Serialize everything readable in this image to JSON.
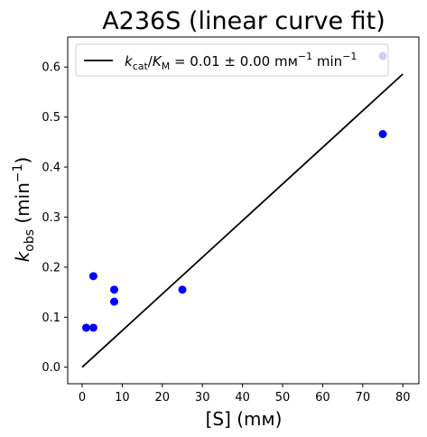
{
  "chart_data": {
    "type": "scatter",
    "title": "A236S (linear curve fit)",
    "xlabel": "[S] (mм)",
    "ylabel": "k_obs (min⁻¹)",
    "xlim": [
      -3.6,
      84
    ],
    "ylim": [
      -0.033,
      0.66
    ],
    "xticks": [
      0,
      10,
      20,
      30,
      40,
      50,
      60,
      70,
      80
    ],
    "yticks": [
      0.0,
      0.1,
      0.2,
      0.3,
      0.4,
      0.5,
      0.6
    ],
    "grid": false,
    "legend_position": "top",
    "point_color": "#0000ff",
    "line_color": "#000000",
    "series": [
      {
        "type": "scatter",
        "x": [
          1,
          2.8,
          2.8,
          8,
          8,
          25,
          75,
          75
        ],
        "y": [
          0.079,
          0.079,
          0.182,
          0.155,
          0.131,
          0.155,
          0.466,
          0.622
        ]
      },
      {
        "type": "line",
        "name": "k_cat/K_M = 0.01 ± 0.00 mм⁻¹ min⁻¹",
        "x": [
          0,
          80
        ],
        "y": [
          0.0,
          0.586
        ]
      }
    ]
  }
}
